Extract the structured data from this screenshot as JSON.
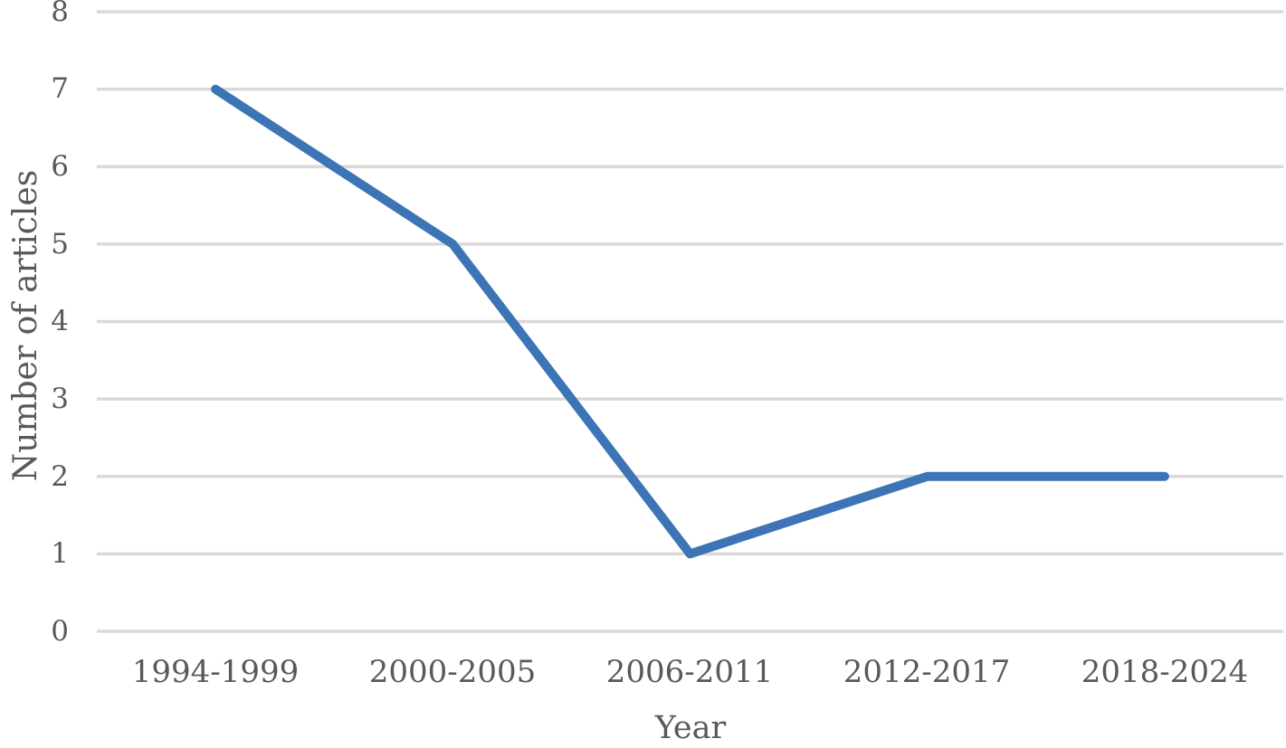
{
  "chart_data": {
    "type": "line",
    "title": "",
    "categories": [
      "1994-1999",
      "2000-2005",
      "2006-2011",
      "2012-2017",
      "2018-2024"
    ],
    "series": [
      {
        "name": "Number of articles",
        "values": [
          7,
          5,
          1,
          2,
          2
        ]
      }
    ],
    "xlabel": "Year",
    "ylabel": "Number of articles",
    "ylim": [
      0,
      8
    ],
    "ytick_interval": 1,
    "ytick_labels": [
      "0",
      "1",
      "2",
      "3",
      "4",
      "5",
      "6",
      "7",
      "8"
    ],
    "grid": "horizontal",
    "legend": "none",
    "markers": "none",
    "colors": {
      "line": "#3D74B5",
      "gridline": "#D9D9D9",
      "text": "#595959"
    }
  }
}
